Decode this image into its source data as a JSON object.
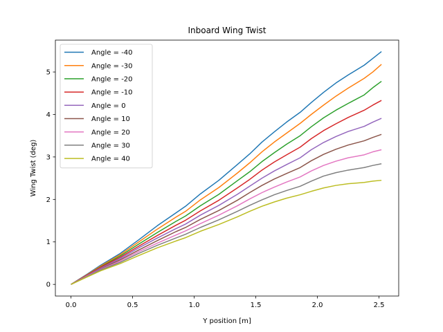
{
  "chart_data": {
    "type": "line",
    "title": "Inboard Wing Twist",
    "xlabel": "Y position [m]",
    "ylabel": "Wing Twist (deg)",
    "xlim": [
      -0.127,
      2.66
    ],
    "ylim": [
      -0.274,
      5.75
    ],
    "xticks": [
      0.0,
      0.5,
      1.0,
      1.5,
      2.0,
      2.5
    ],
    "xtick_labels": [
      "0.0",
      "0.5",
      "1.0",
      "1.5",
      "2.0",
      "2.5"
    ],
    "yticks": [
      0,
      1,
      2,
      3,
      4,
      5
    ],
    "ytick_labels": [
      "0",
      "1",
      "2",
      "3",
      "4",
      "5"
    ],
    "grid": false,
    "legend_position": "upper-left",
    "x": [
      0.0,
      0.12,
      0.24,
      0.4,
      0.55,
      0.7,
      0.85,
      0.93,
      1.05,
      1.2,
      1.35,
      1.45,
      1.55,
      1.65,
      1.75,
      1.86,
      1.95,
      2.05,
      2.15,
      2.25,
      2.38,
      2.45,
      2.52
    ],
    "series": [
      {
        "name": "Angle = -40",
        "color": "#1f77b4",
        "values": [
          0.0,
          0.22,
          0.45,
          0.73,
          1.05,
          1.38,
          1.68,
          1.84,
          2.13,
          2.45,
          2.82,
          3.07,
          3.35,
          3.59,
          3.82,
          4.05,
          4.28,
          4.52,
          4.74,
          4.93,
          5.16,
          5.32,
          5.48
        ]
      },
      {
        "name": "Angle = -30",
        "color": "#ff7f0e",
        "values": [
          0.0,
          0.21,
          0.43,
          0.7,
          1.0,
          1.3,
          1.58,
          1.72,
          1.99,
          2.28,
          2.62,
          2.86,
          3.12,
          3.35,
          3.56,
          3.79,
          4.0,
          4.22,
          4.43,
          4.62,
          4.85,
          5.0,
          5.18
        ]
      },
      {
        "name": "Angle = -20",
        "color": "#2ca02c",
        "values": [
          0.0,
          0.2,
          0.41,
          0.67,
          0.95,
          1.22,
          1.48,
          1.61,
          1.85,
          2.12,
          2.44,
          2.65,
          2.89,
          3.1,
          3.3,
          3.5,
          3.71,
          3.92,
          4.1,
          4.26,
          4.46,
          4.63,
          4.78
        ]
      },
      {
        "name": "Angle = -10",
        "color": "#d62728",
        "values": [
          0.0,
          0.2,
          0.4,
          0.64,
          0.9,
          1.15,
          1.39,
          1.51,
          1.73,
          1.98,
          2.27,
          2.47,
          2.69,
          2.88,
          3.05,
          3.23,
          3.43,
          3.62,
          3.78,
          3.93,
          4.1,
          4.22,
          4.33
        ]
      },
      {
        "name": "Angle = 0",
        "color": "#9467bd",
        "values": [
          0.0,
          0.19,
          0.38,
          0.61,
          0.86,
          1.09,
          1.31,
          1.42,
          1.63,
          1.86,
          2.12,
          2.31,
          2.5,
          2.67,
          2.82,
          2.98,
          3.17,
          3.34,
          3.48,
          3.6,
          3.72,
          3.82,
          3.91
        ]
      },
      {
        "name": "Angle = 10",
        "color": "#8c564b",
        "values": [
          0.0,
          0.18,
          0.36,
          0.58,
          0.81,
          1.03,
          1.24,
          1.34,
          1.53,
          1.74,
          1.98,
          2.16,
          2.33,
          2.48,
          2.61,
          2.75,
          2.91,
          3.06,
          3.18,
          3.28,
          3.38,
          3.46,
          3.53
        ]
      },
      {
        "name": "Angle = 20",
        "color": "#e377c2",
        "values": [
          0.0,
          0.18,
          0.35,
          0.55,
          0.77,
          0.97,
          1.16,
          1.26,
          1.43,
          1.63,
          1.85,
          2.01,
          2.16,
          2.29,
          2.41,
          2.53,
          2.67,
          2.8,
          2.9,
          2.98,
          3.05,
          3.12,
          3.17
        ]
      },
      {
        "name": "Angle = 30",
        "color": "#7f7f7f",
        "values": [
          0.0,
          0.17,
          0.34,
          0.52,
          0.73,
          0.92,
          1.09,
          1.18,
          1.34,
          1.52,
          1.72,
          1.86,
          1.99,
          2.11,
          2.21,
          2.31,
          2.43,
          2.55,
          2.63,
          2.69,
          2.75,
          2.8,
          2.84
        ]
      },
      {
        "name": "Angle = 40",
        "color": "#bcbd22",
        "values": [
          0.0,
          0.16,
          0.32,
          0.49,
          0.68,
          0.86,
          1.02,
          1.1,
          1.25,
          1.41,
          1.59,
          1.72,
          1.84,
          1.94,
          2.03,
          2.11,
          2.19,
          2.27,
          2.33,
          2.37,
          2.4,
          2.43,
          2.45
        ]
      }
    ]
  }
}
